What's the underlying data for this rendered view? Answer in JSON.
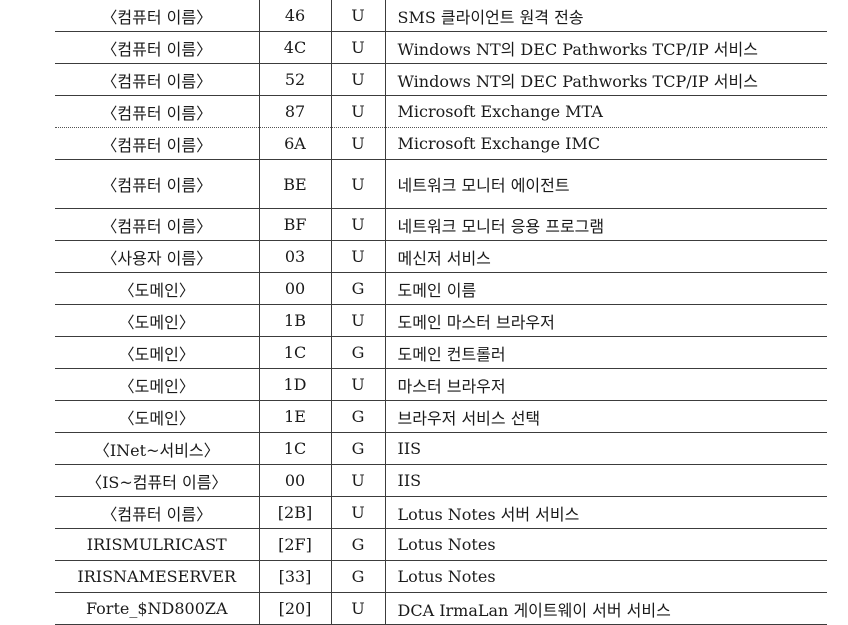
{
  "rows": [
    {
      "name": "〈컴퓨터 이름〉",
      "hex": "46",
      "type": "U",
      "desc": "SMS 클라이언트 원격 전송"
    },
    {
      "name": "〈컴퓨터 이름〉",
      "hex": "4C",
      "type": "U",
      "desc": "Windows NT의 DEC Pathworks TCP/IP 서비스"
    },
    {
      "name": "〈컴퓨터 이름〉",
      "hex": "52",
      "type": "U",
      "desc": "Windows NT의 DEC Pathworks TCP/IP 서비스"
    },
    {
      "name": "〈컴퓨터 이름〉",
      "hex": "87",
      "type": "U",
      "desc": "Microsoft Exchange MTA"
    },
    {
      "name": "〈컴퓨터 이름〉",
      "hex": "6A",
      "type": "U",
      "desc": "Microsoft Exchange IMC"
    },
    {
      "name": "〈컴퓨터 이름〉",
      "hex": "BE",
      "type": "U",
      "desc": "네트워크 모니터 에이전트"
    },
    {
      "name": "〈컴퓨터 이름〉",
      "hex": "BF",
      "type": "U",
      "desc": "네트워크 모니터 응용 프로그램"
    },
    {
      "name": "〈사용자 이름〉",
      "hex": "03",
      "type": "U",
      "desc": "메신저 서비스"
    },
    {
      "name": "〈도메인〉",
      "hex": "00",
      "type": "G",
      "desc": "도메인 이름"
    },
    {
      "name": "〈도메인〉",
      "hex": "1B",
      "type": "U",
      "desc": "도메인 마스터 브라우저"
    },
    {
      "name": "〈도메인〉",
      "hex": "1C",
      "type": "G",
      "desc": "도메인 컨트롤러"
    },
    {
      "name": "〈도메인〉",
      "hex": "1D",
      "type": "U",
      "desc": "마스터 브라우저"
    },
    {
      "name": "〈도메인〉",
      "hex": "1E",
      "type": "G",
      "desc": "브라우저 서비스 선택"
    },
    {
      "name": "〈INet~서비스〉",
      "hex": "1C",
      "type": "G",
      "desc": "IIS"
    },
    {
      "name": "〈IS~컴퓨터 이름〉",
      "hex": "00",
      "type": "U",
      "desc": "IIS"
    },
    {
      "name": "〈컴퓨터 이름〉",
      "hex": "[2B]",
      "type": "U",
      "desc": "Lotus Notes 서버 서비스"
    },
    {
      "name": "IRISMULRICAST",
      "hex": "[2F]",
      "type": "G",
      "desc": "Lotus Notes"
    },
    {
      "name": "IRISNAMESERVER",
      "hex": "[33]",
      "type": "G",
      "desc": "Lotus Notes"
    },
    {
      "name": "Forte_$ND800ZA",
      "hex": "[20]",
      "type": "U",
      "desc": "DCA IrmaLan 게이트웨이 서버 서비스"
    }
  ]
}
